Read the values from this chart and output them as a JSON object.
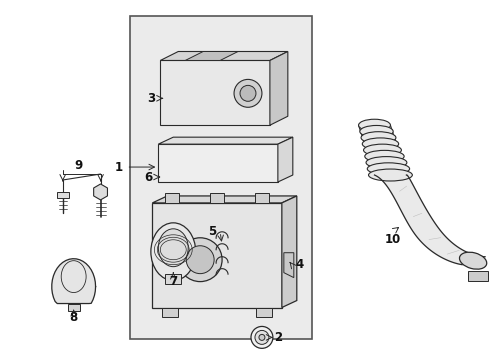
{
  "bg": "#ffffff",
  "lc": "#2a2a2a",
  "box_bg": "#ebebeb",
  "figsize": [
    4.9,
    3.6
  ],
  "dpi": 100
}
